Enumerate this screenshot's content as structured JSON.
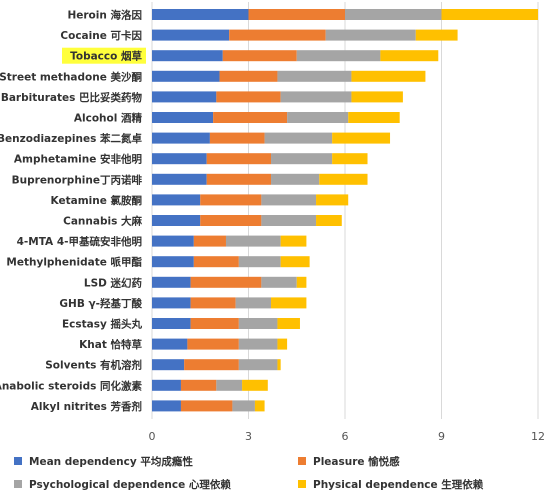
{
  "chart_data": {
    "type": "bar",
    "orientation": "horizontal",
    "stacked": true,
    "categories": [
      "Heroin 海洛因",
      "Cocaine 可卡因",
      "Tobacco 烟草",
      "Street methadone 美沙酮",
      "Barbiturates 巴比妥类药物",
      "Alcohol 酒精",
      "Benzodiazepines 苯二氮卓",
      "Amphetamine 安非他明",
      "Buprenorphine丁丙诺啡",
      "Ketamine 氯胺酮",
      "Cannabis 大麻",
      "4-MTA 4-甲基硫安非他明",
      "Methylphenidate 哌甲酯",
      "LSD 迷幻药",
      "GHB γ-羟基丁酸",
      "Ecstasy 摇头丸",
      "Khat 恰特草",
      "Solvents 有机溶剂",
      "Anabolic steroids 同化激素",
      "Alkyl nitrites 芳香剂"
    ],
    "highlighted_category": "Tobacco 烟草",
    "series": [
      {
        "name": "Mean dependency 平均成瘾性",
        "color": "#4472c4",
        "values": [
          3.0,
          2.4,
          2.2,
          2.1,
          2.0,
          1.9,
          1.8,
          1.7,
          1.7,
          1.5,
          1.5,
          1.3,
          1.3,
          1.2,
          1.2,
          1.2,
          1.1,
          1.0,
          0.9,
          0.9
        ]
      },
      {
        "name": "Pleasure 愉悦感",
        "color": "#ed7d31",
        "values": [
          3.0,
          3.0,
          2.3,
          1.8,
          2.0,
          2.3,
          1.7,
          2.0,
          2.0,
          1.9,
          1.9,
          1.0,
          1.4,
          2.2,
          1.4,
          1.5,
          1.6,
          1.7,
          1.1,
          1.6
        ]
      },
      {
        "name": "Psychological dependence 心理依赖",
        "color": "#a5a5a5",
        "values": [
          3.0,
          2.8,
          2.6,
          2.3,
          2.2,
          1.9,
          2.1,
          1.9,
          1.5,
          1.7,
          1.7,
          1.7,
          1.3,
          1.1,
          1.1,
          1.2,
          1.2,
          1.2,
          0.8,
          0.7
        ]
      },
      {
        "name": "Physical dependence 生理依赖",
        "color": "#ffc000",
        "values": [
          3.0,
          1.3,
          1.8,
          2.3,
          1.6,
          1.6,
          1.8,
          1.1,
          1.5,
          1.0,
          0.8,
          0.8,
          0.9,
          0.3,
          1.1,
          0.7,
          0.3,
          0.1,
          0.8,
          0.3
        ]
      }
    ],
    "xlim": [
      0,
      12
    ],
    "xticks": [
      "0",
      "3",
      "6",
      "9",
      "12"
    ],
    "grid": true,
    "legend_position": "bottom"
  }
}
